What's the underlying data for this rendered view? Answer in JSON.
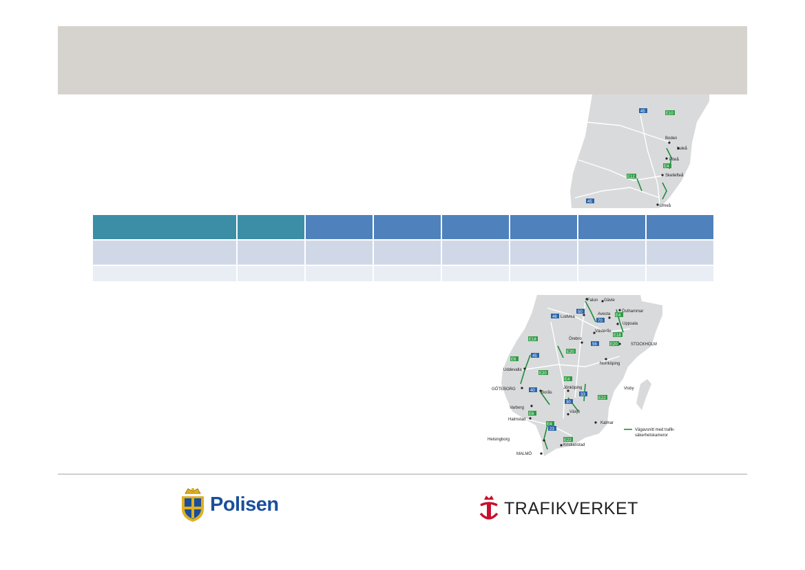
{
  "header": {
    "title": ""
  },
  "table": {
    "columns": [
      "",
      "",
      "",
      "",
      "",
      "",
      "",
      ""
    ],
    "rows": [
      [
        "",
        "",
        "",
        "",
        "",
        "",
        "",
        ""
      ],
      [
        "",
        "",
        "",
        "",
        "",
        "",
        "",
        ""
      ]
    ]
  },
  "map": {
    "cities": [
      "Boden",
      "Luleå",
      "Piteå",
      "Skellefteå",
      "Umeå",
      "Falun",
      "Gävle",
      "Östhammar",
      "Ludvika",
      "Avesta",
      "Uppsala",
      "Västerås",
      "Örebro",
      "STOCKHOLM",
      "Norrköping",
      "Uddevalla",
      "GÖTEBORG",
      "Borås",
      "Jönköping",
      "Visby",
      "Varberg",
      "Halmstad",
      "Växjö",
      "Kalmar",
      "Helsingborg",
      "Kristianstad",
      "MALMÖ"
    ],
    "roads": [
      "45",
      "E10",
      "E4",
      "E12",
      "45",
      "46",
      "50",
      "70",
      "E4",
      "E18",
      "56",
      "E20",
      "E18",
      "45",
      "E6",
      "E20",
      "E4",
      "40",
      "33",
      "30",
      "E22",
      "E6",
      "E4",
      "23",
      "E22"
    ],
    "legend": "Vägavsnitt med trafik-\nsäkerhetskameror",
    "colors": {
      "land": "#d9dadb",
      "road": "#ffffff",
      "camera_section": "#1e8a3c",
      "national_road": "#2a64a8",
      "european_road": "#2e9a45",
      "sea": "#ffffff"
    }
  },
  "footer": {
    "logos": {
      "polisen": "Polisen",
      "trafikverket": "TRAFIKVERKET"
    },
    "colors": {
      "polisen_blue": "#1b4f9c",
      "trafikverket_red": "#c8102e"
    }
  }
}
